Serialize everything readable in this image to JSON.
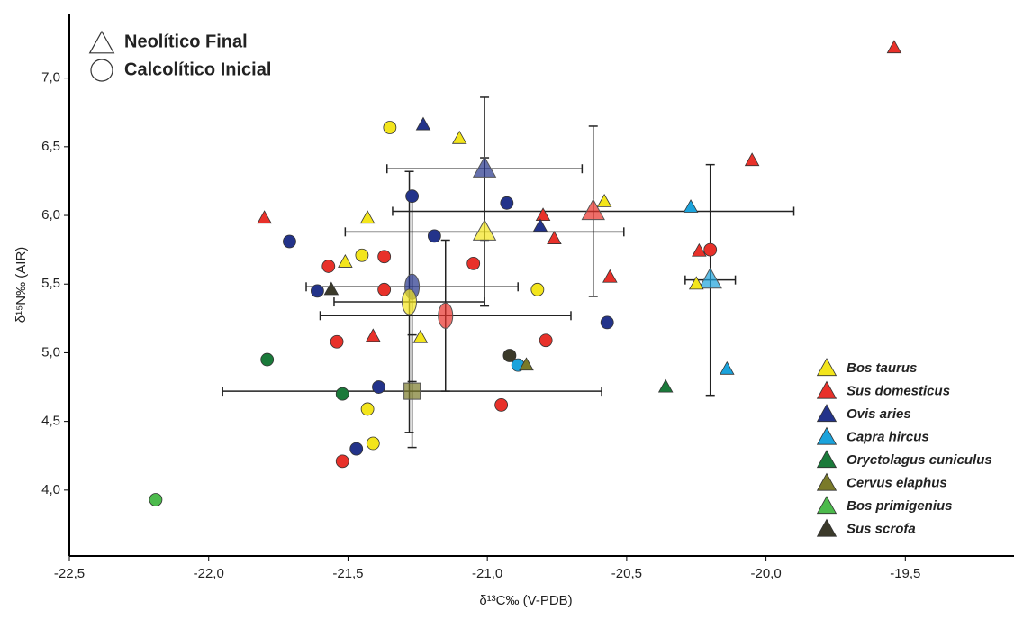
{
  "chart_data": {
    "type": "scatter",
    "x_label": "δ¹³C‰ (V-PDB)",
    "y_label": "δ¹⁵N‰ (AIR)",
    "shape_legend": [
      {
        "shape": "triangle",
        "label": "Neolítico Final"
      },
      {
        "shape": "circle",
        "label": "Calcolítico Inicial"
      }
    ],
    "xlim": [
      -22.5,
      -19.11
    ],
    "ylim": [
      3.52,
      7.47
    ],
    "xticks": [
      {
        "value": -22.5,
        "label": "-22,5"
      },
      {
        "value": -22.0,
        "label": "-22,0"
      },
      {
        "value": -21.5,
        "label": "-21,5"
      },
      {
        "value": -21.0,
        "label": "-21,0"
      },
      {
        "value": -20.5,
        "label": "-20,5"
      },
      {
        "value": -20.0,
        "label": "-20,0"
      },
      {
        "value": -19.5,
        "label": "-19,5"
      }
    ],
    "yticks": [
      {
        "value": 4.0,
        "label": "4,0"
      },
      {
        "value": 4.5,
        "label": "4,5"
      },
      {
        "value": 5.0,
        "label": "5,0"
      },
      {
        "value": 5.5,
        "label": "5,5"
      },
      {
        "value": 6.0,
        "label": "6,0"
      },
      {
        "value": 6.5,
        "label": "6,5"
      },
      {
        "value": 7.0,
        "label": "7,0"
      }
    ],
    "series": [
      {
        "name": "Bos taurus",
        "color": "#f3e51c",
        "triangles": {
          "x": [
            -21.43,
            -21.51,
            -21.1,
            -21.24,
            -20.58,
            -20.25
          ],
          "y": [
            5.98,
            5.66,
            6.56,
            5.11,
            6.1,
            5.5
          ]
        },
        "circles": {
          "x": [
            -21.35,
            -21.45,
            -20.82,
            -21.43,
            -21.41
          ],
          "y": [
            6.64,
            5.71,
            5.46,
            4.59,
            4.34
          ]
        }
      },
      {
        "name": "Sus domesticus",
        "color": "#e8312a",
        "triangles": {
          "x": [
            -19.54,
            -20.05,
            -21.8,
            -20.8,
            -20.76,
            -20.56,
            -20.24,
            -21.41
          ],
          "y": [
            7.22,
            6.4,
            5.98,
            6.0,
            5.83,
            5.55,
            5.74,
            5.12
          ]
        },
        "circles": {
          "x": [
            -21.37,
            -21.57,
            -21.37,
            -21.05,
            -21.54,
            -20.79,
            -20.2,
            -20.95,
            -21.52
          ],
          "y": [
            5.7,
            5.63,
            5.46,
            5.65,
            5.08,
            5.09,
            5.75,
            4.62,
            4.21
          ]
        }
      },
      {
        "name": "Ovis aries",
        "color": "#23338a",
        "triangles": {
          "x": [
            -21.23,
            -20.81
          ],
          "y": [
            6.66,
            5.92
          ]
        },
        "circles": {
          "x": [
            -21.71,
            -21.27,
            -21.19,
            -20.93,
            -21.61,
            -20.57,
            -21.39,
            -21.47
          ],
          "y": [
            5.81,
            6.14,
            5.85,
            6.09,
            5.45,
            5.22,
            4.75,
            4.3
          ]
        }
      },
      {
        "name": "Capra hircus",
        "color": "#1ba3dc",
        "triangles": {
          "x": [
            -20.27,
            -20.14
          ],
          "y": [
            6.06,
            4.88
          ]
        },
        "circles": {
          "x": [
            -20.89
          ],
          "y": [
            4.91
          ]
        }
      },
      {
        "name": "Oryctolagus cuniculus",
        "color": "#1a7a3a",
        "triangles": {
          "x": [
            -20.36
          ],
          "y": [
            4.75
          ]
        },
        "circles": {
          "x": [
            -21.79,
            -21.52
          ],
          "y": [
            4.95,
            4.7
          ]
        }
      },
      {
        "name": "Cervus elaphus",
        "color": "#7a7a2a",
        "triangles": {
          "x": [
            -20.86
          ],
          "y": [
            4.91
          ]
        },
        "circles": {
          "x": [],
          "y": []
        }
      },
      {
        "name": "Bos primigenius",
        "color": "#4cba4c",
        "triangles": {
          "x": [],
          "y": []
        },
        "circles": {
          "x": [
            -22.19
          ],
          "y": [
            3.93
          ]
        }
      },
      {
        "name": "Sus scrofa",
        "color": "#3b3a2a",
        "triangles": {
          "x": [
            -21.56
          ],
          "y": [
            5.46
          ]
        },
        "circles": {
          "x": [
            -20.92
          ],
          "y": [
            4.98
          ]
        }
      }
    ],
    "means": [
      {
        "series": 2,
        "shape": "triangle",
        "x": -21.01,
        "y": 6.34,
        "xerr": 0.35,
        "yerr": 0.52
      },
      {
        "series": 0,
        "shape": "triangle",
        "x": -21.01,
        "y": 5.88,
        "xerr": 0.5,
        "yerr": 0.54
      },
      {
        "series": 1,
        "shape": "triangle",
        "x": -20.62,
        "y": 6.03,
        "xerr": 0.72,
        "yerr": 0.62
      },
      {
        "series": 3,
        "shape": "triangle",
        "x": -20.2,
        "y": 5.53,
        "xerr": 0.09,
        "yerr": 0.84
      },
      {
        "series": 2,
        "shape": "circle",
        "x": -21.27,
        "y": 5.48,
        "xerr": 0.38,
        "yerr": 0.69
      },
      {
        "series": 0,
        "shape": "circle",
        "x": -21.28,
        "y": 5.37,
        "xerr": 0.27,
        "yerr": 0.95
      },
      {
        "series": 1,
        "shape": "circle",
        "x": -21.15,
        "y": 5.27,
        "xerr": 0.45,
        "yerr": 0.55
      },
      {
        "series": 5,
        "shape": "square",
        "x": -21.27,
        "y": 4.72,
        "xerr": 0.68,
        "yerr": 0.41
      }
    ]
  }
}
